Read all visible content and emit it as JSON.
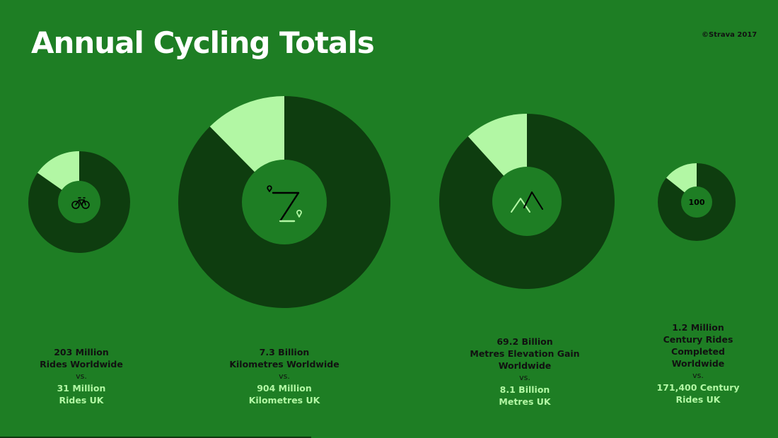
{
  "title": "Annual Cycling Totals",
  "copyright": "©Strava 2017",
  "colors": {
    "background": "#1e7e24",
    "worldwide": "#0e3d0f",
    "uk": "#b2f7a4",
    "inner": "#1e7e24"
  },
  "chart_data": [
    {
      "type": "pie",
      "icon": "bicycle-icon",
      "slices": [
        {
          "label": "Rides Worldwide",
          "value": 203000000
        },
        {
          "label": "Rides UK",
          "value": 31000000
        }
      ],
      "uk_share": 0.1527
    },
    {
      "type": "pie",
      "icon": "route-icon",
      "slices": [
        {
          "label": "Kilometres Worldwide",
          "value": 7300000000
        },
        {
          "label": "Kilometres UK",
          "value": 904000000
        }
      ],
      "uk_share": 0.1238
    },
    {
      "type": "pie",
      "icon": "mountain-icon",
      "slices": [
        {
          "label": "Metres Elevation Gain Worldwide",
          "value": 69200000000
        },
        {
          "label": "Metres UK",
          "value": 8100000000
        }
      ],
      "uk_share": 0.1171
    },
    {
      "type": "pie",
      "icon_text": "100",
      "slices": [
        {
          "label": "Century Rides Completed Worldwide",
          "value": 1200000
        },
        {
          "label": "Century Rides UK",
          "value": 171400
        }
      ],
      "uk_share": 0.1428
    }
  ],
  "captions": [
    {
      "worldwide": "203 Million\nRides Worldwide",
      "vs": "vs.",
      "uk": "31 Million\nRides UK"
    },
    {
      "worldwide": "7.3 Billion\nKilometres Worldwide",
      "vs": "vs.",
      "uk": "904 Million\nKilometres UK"
    },
    {
      "worldwide": "69.2 Billion\nMetres Elevation Gain\nWorldwide",
      "vs": "vs.",
      "uk": "8.1 Billion\nMetres UK"
    },
    {
      "worldwide": "1.2 Million\nCentury Rides\nCompleted\nWorldwide",
      "vs": "vs.",
      "uk": "171,400 Century\nRides UK"
    }
  ]
}
